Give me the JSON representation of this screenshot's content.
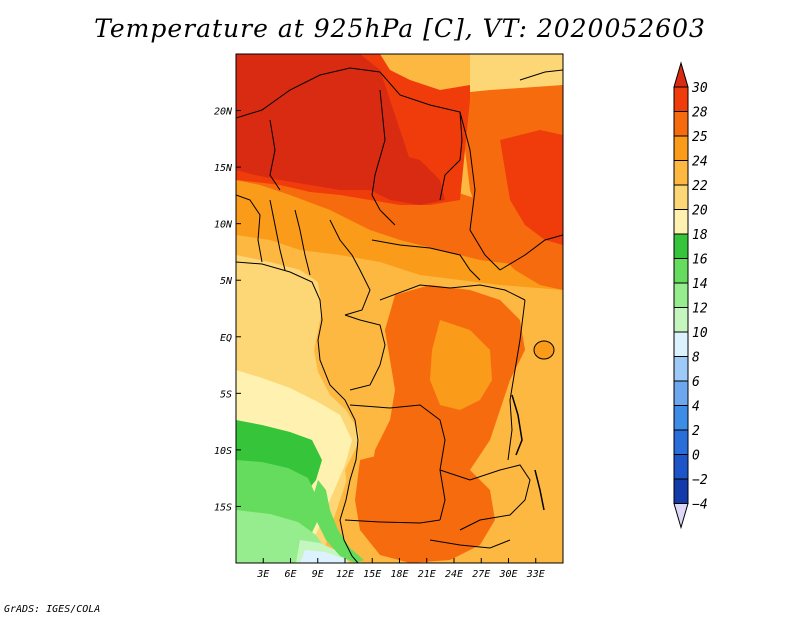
{
  "title": "Temperature at 925hPa [C], VT: 2020052603",
  "credit": "GrADS: IGES/COLA",
  "map": {
    "lon_range": [
      0,
      36
    ],
    "lat_range": [
      -20,
      25
    ],
    "x_ticks": [
      {
        "value": 3,
        "label": "3E"
      },
      {
        "value": 6,
        "label": "6E"
      },
      {
        "value": 9,
        "label": "9E"
      },
      {
        "value": 12,
        "label": "12E"
      },
      {
        "value": 15,
        "label": "15E"
      },
      {
        "value": 18,
        "label": "18E"
      },
      {
        "value": 21,
        "label": "21E"
      },
      {
        "value": 24,
        "label": "24E"
      },
      {
        "value": 27,
        "label": "27E"
      },
      {
        "value": 30,
        "label": "30E"
      },
      {
        "value": 33,
        "label": "33E"
      }
    ],
    "y_ticks": [
      {
        "value": 20,
        "label": "20N"
      },
      {
        "value": 15,
        "label": "15N"
      },
      {
        "value": 10,
        "label": "10N"
      },
      {
        "value": 5,
        "label": "5N"
      },
      {
        "value": 0,
        "label": "EQ"
      },
      {
        "value": -5,
        "label": "5S"
      },
      {
        "value": -10,
        "label": "10S"
      },
      {
        "value": -15,
        "label": "15S"
      }
    ]
  },
  "colorbar": {
    "labels": [
      "30",
      "28",
      "25",
      "24",
      "22",
      "20",
      "18",
      "16",
      "14",
      "12",
      "10",
      "8",
      "6",
      "4",
      "2",
      "0",
      "−2",
      "−4"
    ],
    "colors": {
      "above30": "#d92a12",
      "c28_30": "#f03c0b",
      "c25_28": "#f76b0f",
      "c24_25": "#fa9b1a",
      "c22_24": "#fdb842",
      "c20_22": "#fdd775",
      "c18_20": "#fff2b0",
      "c16_18": "#36c43b",
      "c14_16": "#66dc5e",
      "c12_14": "#96ed8e",
      "c10_12": "#c6f6c0",
      "c8_10": "#dcf2ff",
      "c6_8": "#9dcaf7",
      "c4_6": "#6da7ee",
      "c2_4": "#3d8de6",
      "c0_2": "#2a6fd9",
      "cm2_0": "#1d55c8",
      "cm4_m2": "#123aa8",
      "below_m4": "#0a1a6e"
    }
  }
}
